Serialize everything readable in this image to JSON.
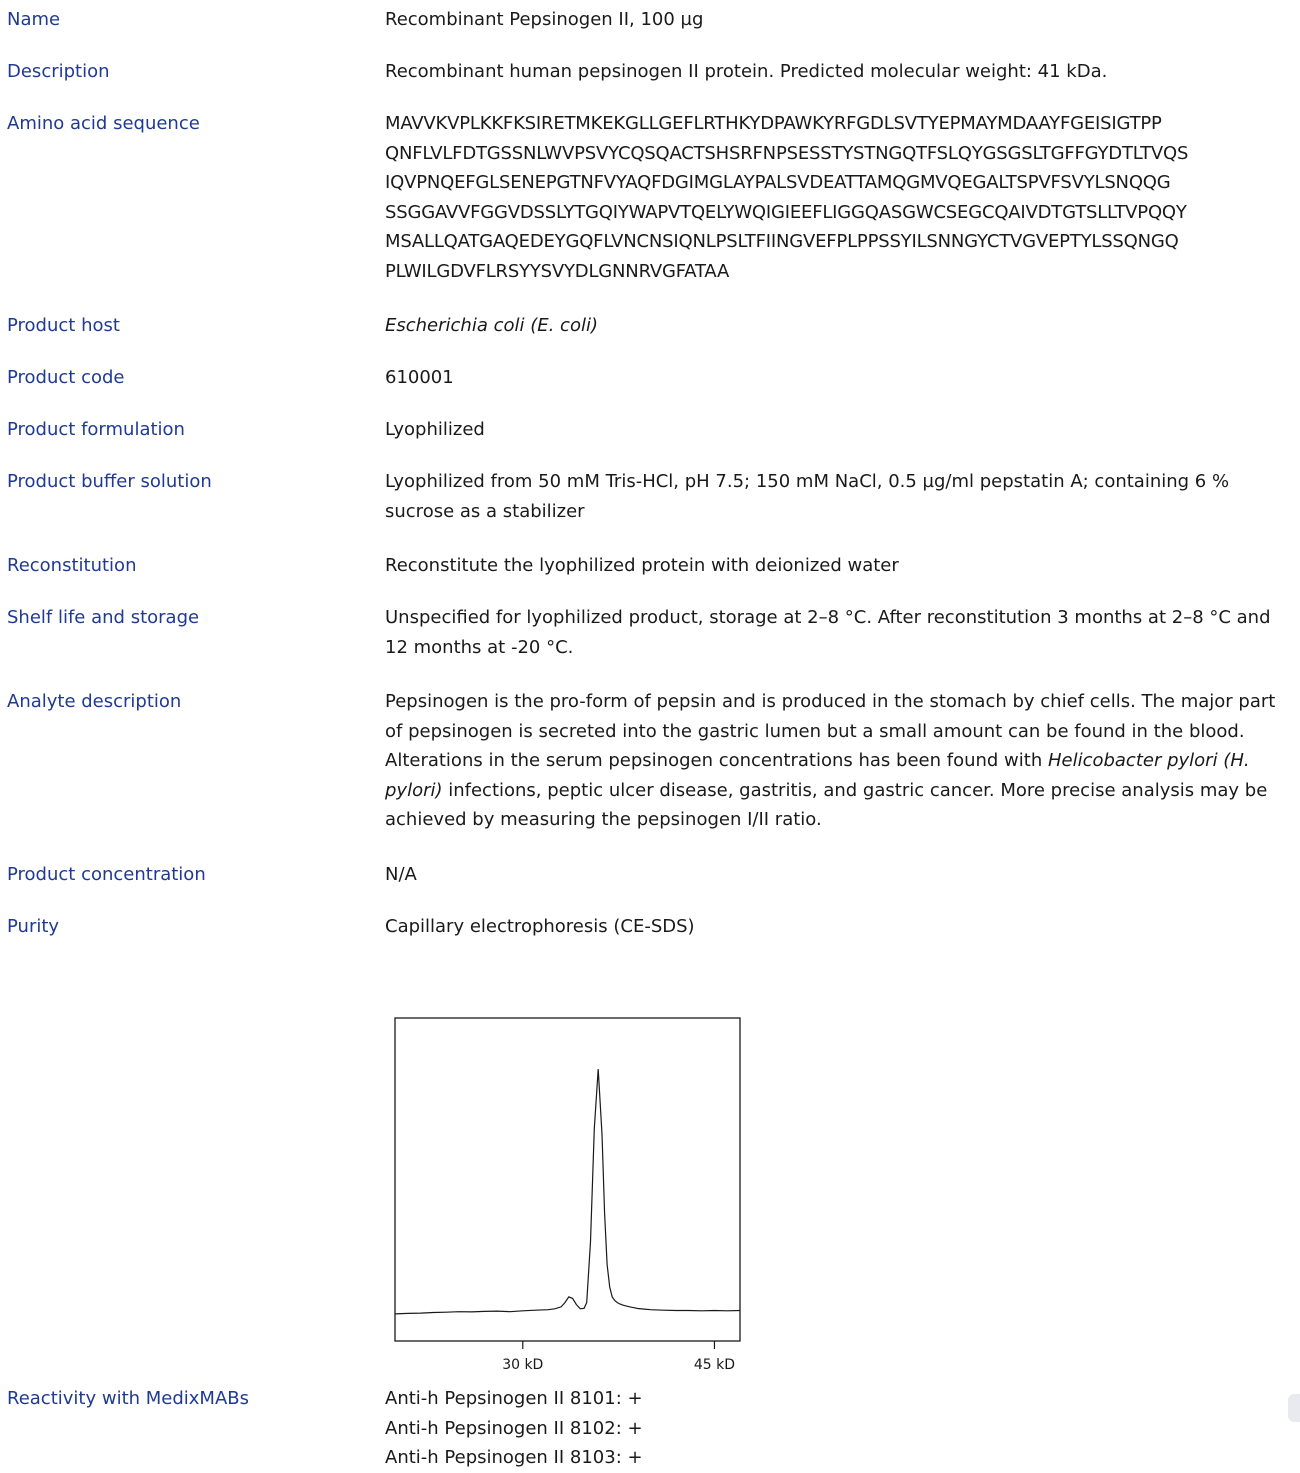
{
  "rows": {
    "name": {
      "label": "Name",
      "value": "Recombinant Pepsinogen II, 100 µg"
    },
    "description": {
      "label": "Description",
      "value": "Recombinant human pepsinogen II protein. Predicted molecular weight: 41 kDa."
    },
    "sequence": {
      "label": "Amino acid sequence",
      "lines": [
        "MAVVKVPLKKFKSIRETMKEKGLLGEFLRTHKYDPAWKYRFGDLSVTYEPMAYMDAAYFGEISIGTPP",
        "QNFLVLFDTGSSNLWVPSVYCQSQACTSHSRFNPSESSTYSTNGQTFSLQYGSGSLTGFFGYDTLTVQS",
        "IQVPNQEFGLSENEPGTNFVYAQFDGIMGLAYPALSVDEATTAMQGMVQEGALTSPVFSVYLSNQQG",
        "SSGGAVVFGGVDSSLYTGQIYWAPVTQELYWQIGIEEFLIGGQASGWCSEGCQAIVDTGTSLLTVPQQY",
        "MSALLQATGAQEDEYGQFLVNCNSIQNLPSLTFIINGVEFPLPPSSYILSNNGYCTVGVEPTYLSSQNGQ",
        "PLWILGDVFLRSYYSVYDLGNNRVGFATAA"
      ]
    },
    "host": {
      "label": "Product host",
      "value": "Escherichia coli (E. coli)"
    },
    "code": {
      "label": "Product code",
      "value": "610001"
    },
    "formulation": {
      "label": "Product formulation",
      "value": "Lyophilized"
    },
    "buffer": {
      "label": "Product buffer solution",
      "value": "Lyophilized from 50 mM Tris-HCl, pH 7.5; 150 mM NaCl, 0.5 µg/ml pepstatin A; containing 6 % sucrose as a stabilizer"
    },
    "reconstitution": {
      "label": "Reconstitution",
      "value": "Reconstitute the lyophilized protein with deionized water"
    },
    "shelf": {
      "label": "Shelf life and storage",
      "value": "Unspecified for lyophilized product, storage at 2–8 °C. After reconstitution 3 months at 2–8 °C and 12 months at -20 °C."
    },
    "analyte": {
      "label": "Analyte description",
      "part1": "Pepsinogen is the pro-form of pepsin and is produced in the stomach by chief cells. The major part of pepsinogen is secreted into the gastric lumen but a small amount can be found in the blood. Alterations in the serum pepsinogen concentrations has been found with ",
      "italic": "Helicobacter pylori (H. pylori)",
      "part2": " infections, peptic ulcer disease, gastritis, and gastric cancer. More precise analysis may be achieved by measuring the pepsinogen I/II ratio."
    },
    "concentration": {
      "label": "Product concentration",
      "value": "N/A"
    },
    "purity": {
      "label": "Purity",
      "value": "Capillary electrophoresis (CE-SDS)"
    }
  },
  "reactivity": {
    "label": "Reactivity with MedixMABs",
    "items": [
      "Anti-h Pepsinogen II 8101: +",
      "Anti-h Pepsinogen II 8102: +",
      "Anti-h Pepsinogen II 8103: +"
    ]
  },
  "chart_data": {
    "type": "line",
    "title": "",
    "xlabel": "",
    "ylabel": "",
    "grid": false,
    "legend": "none",
    "xticks": [
      {
        "value": 30,
        "label": "30 kD"
      },
      {
        "value": 45,
        "label": "45 kD"
      }
    ],
    "xlim": [
      20,
      47
    ],
    "ylim": [
      0,
      100
    ],
    "series": [
      {
        "color": "#1a1a1a",
        "x": [
          20.0,
          21.0,
          22.0,
          23.0,
          24.0,
          25.0,
          26.0,
          27.0,
          28.0,
          29.0,
          30.0,
          31.0,
          32.0,
          32.5,
          33.0,
          33.3,
          33.6,
          33.9,
          34.2,
          34.5,
          34.8,
          35.0,
          35.3,
          35.6,
          35.9,
          36.2,
          36.4,
          36.6,
          36.8,
          37.0,
          37.2,
          37.4,
          37.6,
          37.8,
          38.0,
          38.2,
          38.4,
          38.7,
          39.0,
          39.5,
          40.0,
          41.0,
          42.0,
          43.0,
          44.0,
          45.0,
          46.0,
          47.0
        ],
        "y": [
          2.5,
          2.7,
          2.8,
          3.0,
          3.1,
          3.3,
          3.2,
          3.4,
          3.5,
          3.3,
          3.6,
          3.8,
          4.0,
          4.3,
          5.0,
          6.5,
          8.5,
          8.0,
          5.8,
          4.3,
          4.5,
          6.5,
          28.0,
          68.0,
          89.0,
          66.0,
          38.0,
          20.0,
          12.0,
          8.5,
          7.2,
          6.5,
          6.0,
          5.7,
          5.4,
          5.2,
          5.0,
          4.7,
          4.4,
          4.2,
          4.0,
          3.8,
          3.7,
          3.7,
          3.6,
          3.7,
          3.6,
          3.7
        ]
      }
    ]
  }
}
